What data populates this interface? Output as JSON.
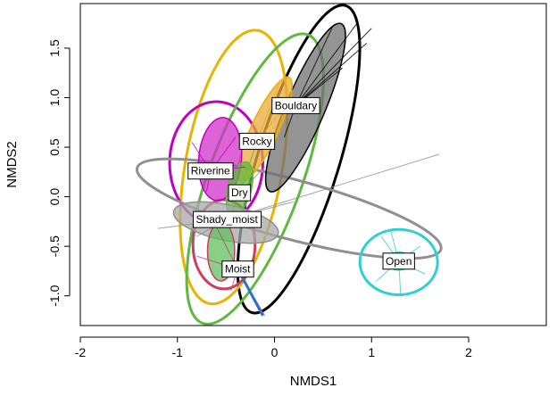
{
  "chart_data": {
    "type": "scatter",
    "title": "",
    "xlabel": "NMDS1",
    "ylabel": "NMDS2",
    "xlim": [
      -2.0,
      2.8
    ],
    "ylim": [
      -1.3,
      1.95
    ],
    "x_ticks": [
      -2,
      -1,
      0,
      1,
      2
    ],
    "x_tick_labels": [
      "-2",
      "-1",
      "0",
      "1",
      "2"
    ],
    "y_ticks": [
      -1.0,
      -0.5,
      0.0,
      0.5,
      1.0,
      1.5
    ],
    "y_tick_labels": [
      "-1.0",
      "-0.5",
      "0.0",
      "0.5",
      "1.0",
      "1.5"
    ],
    "grid": false,
    "legend": "none",
    "groups": [
      {
        "name": "Bouldary",
        "centroid": [
          0.22,
          0.92
        ],
        "color": "#000000",
        "fill": "#707070",
        "dispersion": {
          "center": [
            0.25,
            0.38
          ],
          "rx": 0.42,
          "ry": 1.62,
          "angle": 17
        },
        "spread": {
          "center": [
            0.32,
            0.9
          ],
          "rx": 0.2,
          "ry": 0.92,
          "angle": 23
        },
        "spokes": [
          [
            0.85,
            1.75
          ],
          [
            0.95,
            1.55
          ],
          [
            0.6,
            1.72
          ],
          [
            1.0,
            1.7
          ],
          [
            0.7,
            1.3
          ],
          [
            0.1,
            0.6
          ]
        ]
      },
      {
        "name": "Rocky",
        "centroid": [
          -0.18,
          0.56
        ],
        "color": "#e8b400",
        "fill": "#e8a93c",
        "dispersion": {
          "center": [
            -0.42,
            0.3
          ],
          "rx": 0.5,
          "ry": 1.4,
          "angle": 10
        },
        "spread": {
          "center": [
            -0.1,
            0.68
          ],
          "rx": 0.14,
          "ry": 0.58,
          "angle": 25
        },
        "spokes": [
          [
            0.05,
            1.15
          ],
          [
            -0.3,
            0.2
          ],
          [
            0.1,
            0.9
          ],
          [
            -0.25,
            0.6
          ]
        ]
      },
      {
        "name": "Riverine",
        "centroid": [
          -0.66,
          0.26
        ],
        "color": "#c000c0",
        "fill": "#d030c8",
        "dispersion": {
          "center": [
            -0.6,
            0.34
          ],
          "rx": 0.48,
          "ry": 0.62,
          "angle": 0
        },
        "spread": {
          "center": [
            -0.56,
            0.38
          ],
          "rx": 0.22,
          "ry": 0.42,
          "angle": 5
        },
        "spokes": [
          [
            -0.85,
            0.55
          ],
          [
            -0.4,
            0.6
          ],
          [
            -0.7,
            0.05
          ],
          [
            -0.3,
            0.3
          ]
        ]
      },
      {
        "name": "Dry",
        "centroid": [
          -0.36,
          0.04
        ],
        "color": "#60b840",
        "fill": "#60b840",
        "dispersion": {
          "center": [
            -0.2,
            0.18
          ],
          "rx": 0.48,
          "ry": 1.55,
          "angle": 20
        },
        "spread": {
          "center": [
            -0.36,
            0.08
          ],
          "rx": 0.12,
          "ry": 0.28,
          "angle": 15
        },
        "spokes": [
          [
            -0.2,
            0.5
          ],
          [
            -0.5,
            -0.3
          ],
          [
            -0.1,
            0.3
          ]
        ]
      },
      {
        "name": "Shady_moist",
        "centroid": [
          -0.49,
          -0.23
        ],
        "color": "#909090",
        "fill": "#a8a8a8",
        "dispersion": {
          "center": [
            0.15,
            -0.12
          ],
          "rx": 1.62,
          "ry": 0.3,
          "angle": 15
        },
        "spread": {
          "center": [
            -0.5,
            -0.26
          ],
          "rx": 0.55,
          "ry": 0.18,
          "angle": 12
        },
        "spokes": [
          [
            1.7,
            0.43
          ],
          [
            -1.2,
            -0.32
          ],
          [
            0.2,
            -0.05
          ],
          [
            -0.8,
            -0.4
          ]
        ]
      },
      {
        "name": "Moist",
        "centroid": [
          -0.38,
          -0.73
        ],
        "color": "#c84060",
        "fill": "#60c060",
        "dispersion": {
          "center": [
            -0.52,
            -0.48
          ],
          "rx": 0.32,
          "ry": 0.45,
          "angle": 0
        },
        "spread": {
          "center": [
            -0.55,
            -0.55
          ],
          "rx": 0.14,
          "ry": 0.3,
          "angle": 0
        },
        "spokes": [
          [
            -0.1,
            -1.2
          ],
          [
            -0.6,
            -0.3
          ],
          [
            -0.45,
            -0.95
          ],
          [
            -0.8,
            -0.6
          ]
        ]
      },
      {
        "name": "Open",
        "centroid": [
          1.28,
          -0.65
        ],
        "color": "#30d0d0",
        "fill": "#80e0e0",
        "dispersion": {
          "center": [
            1.28,
            -0.66
          ],
          "rx": 0.4,
          "ry": 0.33,
          "angle": 0
        },
        "spread": {
          "center": [
            1.28,
            -0.65
          ],
          "rx": 0.13,
          "ry": 0.09,
          "angle": 0
        },
        "spokes": [
          [
            1.1,
            -0.4
          ],
          [
            1.5,
            -0.5
          ],
          [
            1.3,
            -1.0
          ],
          [
            1.05,
            -0.85
          ],
          [
            1.55,
            -0.78
          ],
          [
            1.2,
            -0.35
          ]
        ]
      }
    ],
    "extra_segments": [
      {
        "color": "#3070d0",
        "from": [
          -0.35,
          -0.78
        ],
        "to": [
          -0.12,
          -1.2
        ]
      }
    ]
  }
}
